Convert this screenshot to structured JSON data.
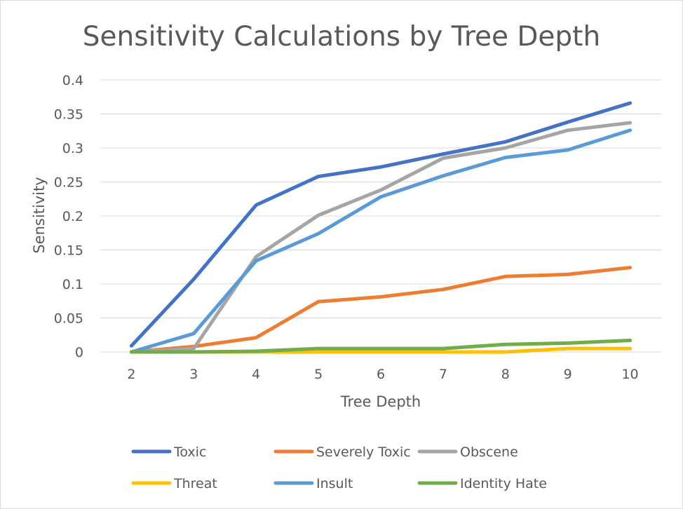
{
  "chart_data": {
    "type": "line",
    "title": "Sensitivity Calculations by Tree Depth",
    "xlabel": "Tree Depth",
    "ylabel": "Sensitivity",
    "x": [
      2,
      3,
      4,
      5,
      6,
      7,
      8,
      9,
      10
    ],
    "x_tick_labels": [
      "2",
      "3",
      "4",
      "5",
      "6",
      "7",
      "8",
      "9",
      "10"
    ],
    "ylim": [
      0,
      0.4
    ],
    "y_ticks": [
      0,
      0.05,
      0.1,
      0.15,
      0.2,
      0.25,
      0.3,
      0.35,
      0.4
    ],
    "y_tick_labels": [
      "0",
      "0.05",
      "0.1",
      "0.15",
      "0.2",
      "0.25",
      "0.3",
      "0.35",
      "0.4"
    ],
    "grid": "horizontal",
    "legend_position": "bottom",
    "series": [
      {
        "name": "Toxic",
        "color": "#4472c4",
        "values": [
          0.009,
          0.107,
          0.216,
          0.258,
          0.272,
          0.291,
          0.309,
          0.338,
          0.366
        ]
      },
      {
        "name": "Severely Toxic",
        "color": "#ed7d31",
        "values": [
          0.0,
          0.008,
          0.021,
          0.074,
          0.081,
          0.092,
          0.111,
          0.114,
          0.124
        ]
      },
      {
        "name": "Obscene",
        "color": "#a5a5a5",
        "values": [
          0.0,
          0.005,
          0.14,
          0.201,
          0.238,
          0.285,
          0.3,
          0.326,
          0.337
        ]
      },
      {
        "name": "Threat",
        "color": "#ffc000",
        "values": [
          0.0,
          0.0,
          0.0,
          0.0,
          0.0,
          0.0,
          0.0,
          0.005,
          0.005
        ]
      },
      {
        "name": "Insult",
        "color": "#5b9bd5",
        "values": [
          0.0,
          0.027,
          0.134,
          0.174,
          0.228,
          0.259,
          0.286,
          0.297,
          0.326
        ]
      },
      {
        "name": "Identity Hate",
        "color": "#70ad47",
        "values": [
          0.0,
          0.0,
          0.001,
          0.005,
          0.005,
          0.005,
          0.011,
          0.013,
          0.017
        ]
      }
    ]
  }
}
